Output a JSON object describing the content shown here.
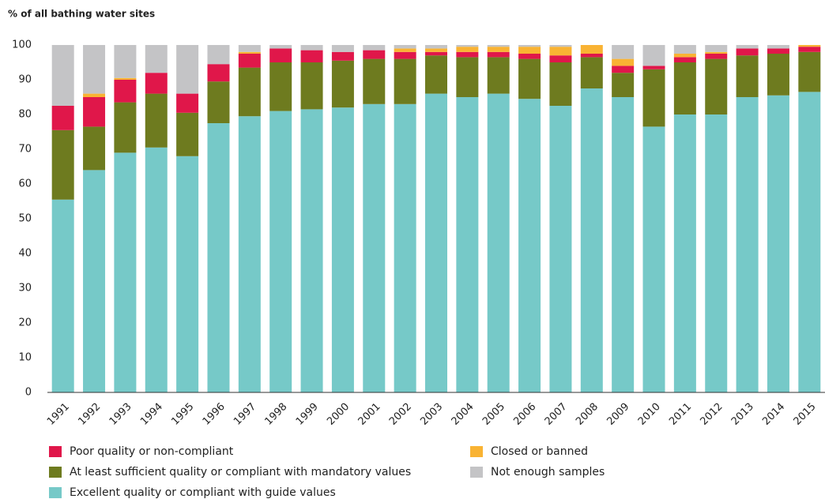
{
  "chart_data": {
    "type": "stacked_bar",
    "y_axis_label": "% of all bathing water sites",
    "categories": [
      "1991",
      "1992",
      "1993",
      "1994",
      "1995",
      "1996",
      "1997",
      "1998",
      "1999",
      "2000",
      "2001",
      "2002",
      "2003",
      "2004",
      "2005",
      "2006",
      "2007",
      "2008",
      "2009",
      "2010",
      "2011",
      "2012",
      "2013",
      "2014",
      "2015"
    ],
    "series": [
      {
        "name": "Excellent quality or compliant with guide values",
        "color": "#76c9c8",
        "values": [
          55.5,
          64,
          69,
          70.5,
          68,
          77.5,
          79.5,
          81,
          81.5,
          82,
          83,
          83,
          86,
          85,
          86,
          84.5,
          82.5,
          87.5,
          85,
          76.5,
          80,
          80,
          85,
          85.5,
          86.5
        ]
      },
      {
        "name": "At least sufficient quality or compliant with mandatory values",
        "color": "#6e7b1f",
        "values": [
          20,
          12.5,
          14.5,
          15.5,
          12.5,
          12,
          14,
          14,
          13.5,
          13.5,
          13,
          13,
          11,
          11.5,
          10.5,
          11.5,
          12.5,
          9,
          7,
          16.5,
          15,
          16,
          12,
          12,
          11.5
        ]
      },
      {
        "name": "Poor quality or non-compliant",
        "color": "#e0174a",
        "values": [
          7,
          8.5,
          6.5,
          6,
          5.5,
          5,
          4,
          4,
          3.5,
          2.5,
          2.5,
          2,
          1,
          1.5,
          1.5,
          1.5,
          2,
          1,
          2,
          1,
          1.5,
          1.5,
          2,
          1.5,
          1.5
        ]
      },
      {
        "name": "Closed or banned",
        "color": "#f9b333",
        "values": [
          0,
          1,
          0.5,
          0,
          0,
          0,
          0.5,
          0,
          0,
          0,
          0,
          1,
          1,
          1.5,
          1.5,
          2,
          2.5,
          2.5,
          2,
          0,
          1,
          0.5,
          0,
          0,
          0.5
        ]
      },
      {
        "name": "Not enough samples",
        "color": "#c4c4c6",
        "values": [
          17.5,
          14,
          9.5,
          8,
          14,
          5.5,
          2,
          1,
          1.5,
          2,
          1.5,
          1,
          1,
          0.5,
          0.5,
          0.5,
          0.5,
          0,
          4,
          6,
          2.5,
          2,
          1,
          1,
          0
        ]
      }
    ],
    "ylim": [
      0,
      100
    ],
    "yticks": [
      0,
      10,
      20,
      30,
      40,
      50,
      60,
      70,
      80,
      90,
      100
    ],
    "grid": false
  }
}
